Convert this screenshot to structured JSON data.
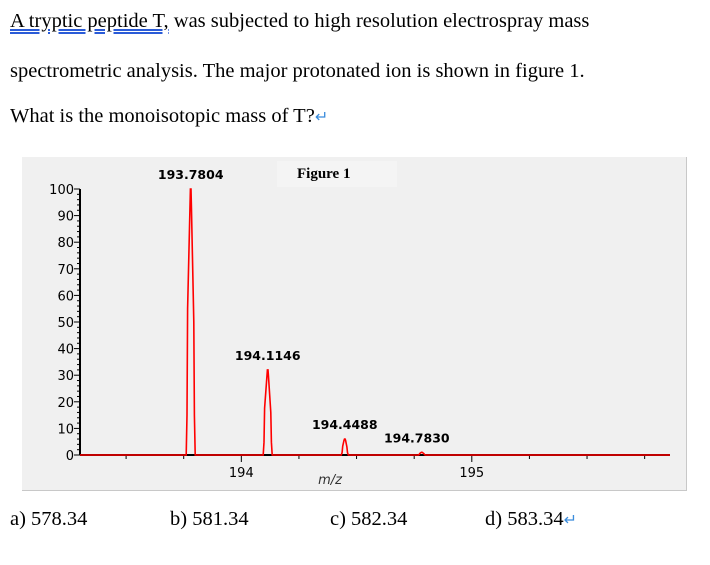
{
  "question": {
    "line1_underlined": "A tryptic peptide T,",
    "line1_rest": " was subjected to high resolution electrospray mass",
    "line2": "spectrometric analysis. The major protonated ion is shown in figure 1.",
    "line3": "What is the monoisotopic mass of T?",
    "return_mark": "↵"
  },
  "chart_data": {
    "type": "line",
    "title": "Figure 1",
    "xlabel": "m/z",
    "ylabel": "",
    "xlim": [
      193.3,
      195.86
    ],
    "ylim": [
      0,
      100
    ],
    "x_ticks": [
      "194",
      "195"
    ],
    "y_ticks": [
      "0",
      "10",
      "20",
      "30",
      "40",
      "50",
      "60",
      "70",
      "80",
      "90",
      "100"
    ],
    "peaks": [
      {
        "mz": 193.7804,
        "intensity": 100,
        "label": "193.7804"
      },
      {
        "mz": 194.1146,
        "intensity": 32,
        "label": "194.1146"
      },
      {
        "mz": 194.4488,
        "intensity": 6,
        "label": "194.4488"
      },
      {
        "mz": 194.783,
        "intensity": 1,
        "label": "194.7830"
      }
    ],
    "line_color": "#ff0000",
    "grid": false
  },
  "answers": [
    {
      "label": "a) 578.34"
    },
    {
      "label": "b) 581.34"
    },
    {
      "label": "c) 582.34"
    },
    {
      "label": "d) 583.34"
    }
  ]
}
